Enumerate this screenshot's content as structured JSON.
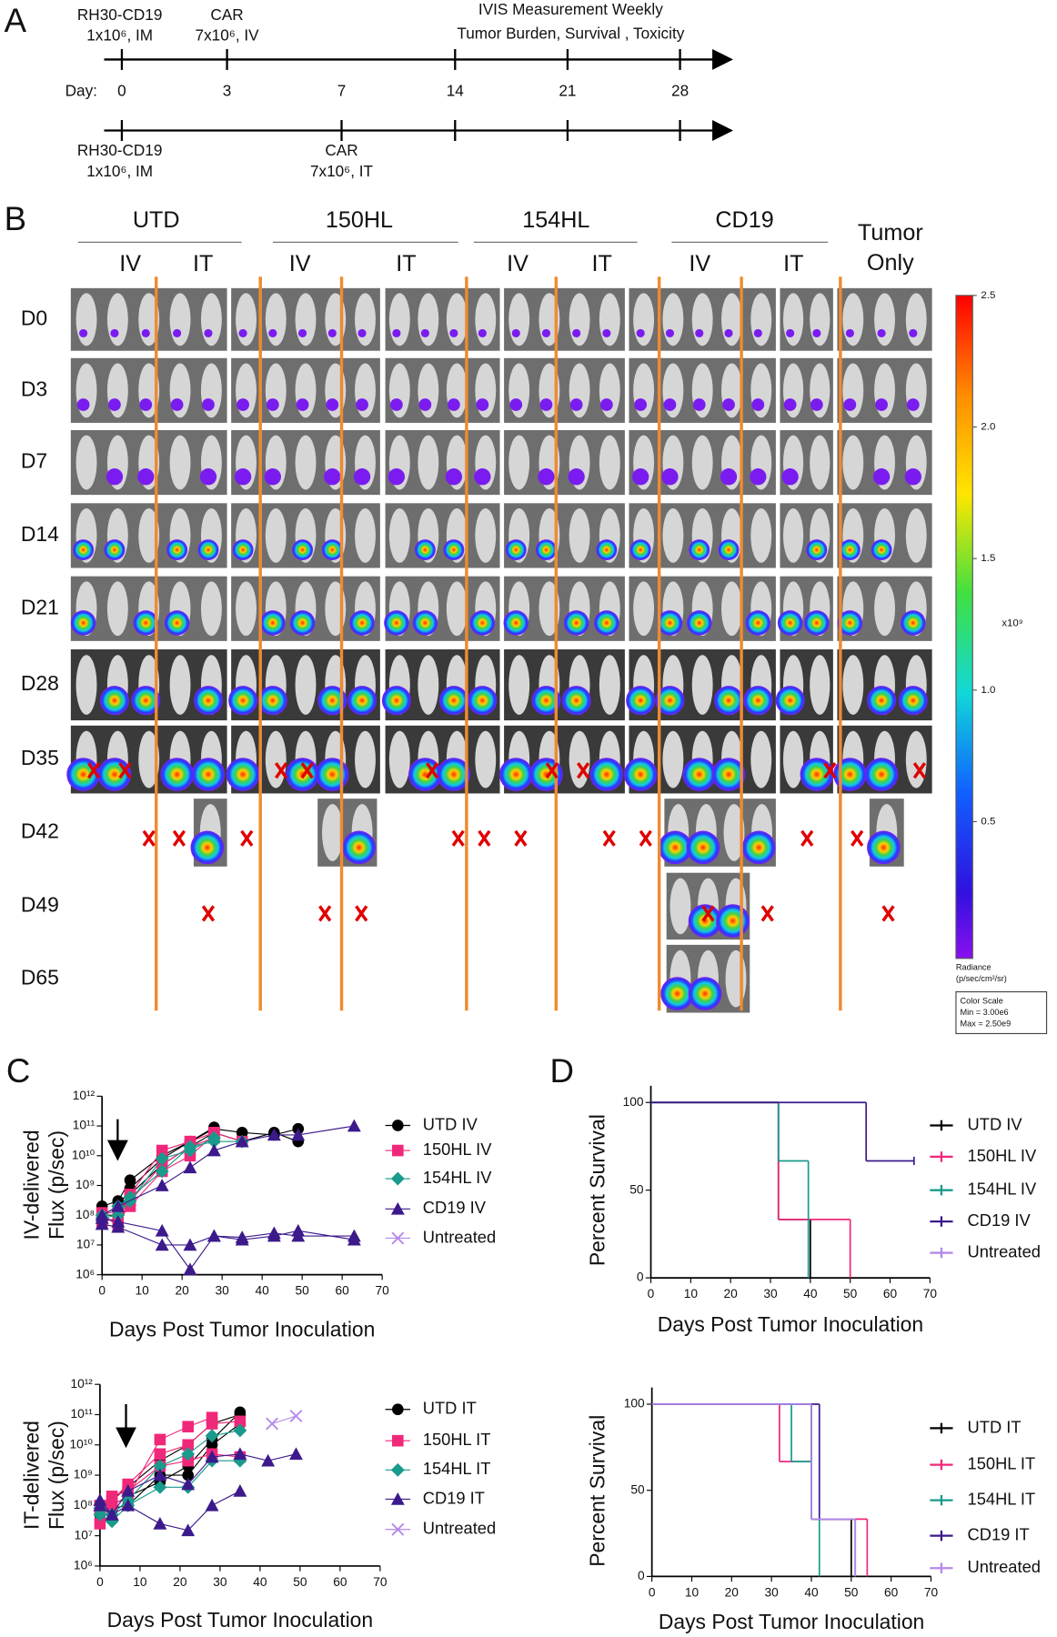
{
  "panel_labels": [
    "A",
    "B",
    "C",
    "D"
  ],
  "panel_a": {
    "top": [
      "RH30-CD19",
      "1x10⁶, IM",
      "CAR",
      "7x10⁶, IV",
      "IVIS Measurement Weekly",
      "Tumor  Burden, Survival , Toxicity"
    ],
    "day_label": "Day:",
    "days": [
      0,
      3,
      7,
      14,
      21,
      28
    ],
    "bottom": [
      "RH30-CD19",
      "1x10⁶, IM",
      "CAR",
      "7x10⁶, IT"
    ]
  },
  "panel_b": {
    "groups": [
      "UTD",
      "150HL",
      "154HL",
      "CD19"
    ],
    "tumor_only": [
      "Tumor",
      "Only"
    ],
    "routes": [
      "IV",
      "IT",
      "IV",
      "IT",
      "IV",
      "IT",
      "IV",
      "IT"
    ],
    "days": [
      "D0",
      "D3",
      "D7",
      "D14",
      "D21",
      "D28",
      "D35",
      "D42",
      "D49",
      "D65"
    ],
    "colorbar": {
      "lim": [
        0,
        2.5
      ],
      "ticks": [
        2.5,
        {
          "value": 2,
          "label": "2.0"
        },
        1.5,
        {
          "value": 1,
          "label": "1.0"
        },
        0.5
      ],
      "unit": "x10⁹",
      "title": [
        "Radiance",
        "(p/sec/cm²/sr)"
      ],
      "box": [
        "Color Scale",
        "Min = 3.00e6",
        "Max = 2.50e9"
      ]
    }
  },
  "chart_data": [
    {
      "type": "line",
      "log_y": true,
      "ylabel": [
        "IV-delivered",
        "Flux (p/sec)"
      ],
      "xlabel": "Days Post Tumor Inoculation",
      "xlim": [
        0,
        70
      ],
      "xticks": [
        0,
        10,
        20,
        30,
        40,
        50,
        60,
        70
      ],
      "ylim": [
        1000000.0,
        1000000000000.0
      ],
      "yticks": [
        {
          "value": 1000000.0,
          "label": "10⁶"
        },
        {
          "value": 10000000.0,
          "label": "10⁷"
        },
        {
          "value": 100000000.0,
          "label": "10⁸"
        },
        {
          "value": 1000000000.0,
          "label": "10⁹"
        },
        {
          "value": 10000000000.0,
          "label": "10¹⁰"
        },
        {
          "value": 100000000000.0,
          "label": "10¹¹"
        },
        {
          "value": 1000000000000.0,
          "label": "10¹²"
        }
      ],
      "series": [
        {
          "name": "UTD IV",
          "color": "#000000",
          "marker": "circle",
          "traces": [
            {
              "x": [
                0,
                4,
                7,
                15,
                22,
                28,
                35,
                43,
                49
              ],
              "values": [
                200000000.0,
                300000000.0,
                1500000000.0,
                10000000000.0,
                30000000000.0,
                80000000000.0,
                60000000000.0,
                50000000000.0,
                80000000000.0
              ]
            },
            {
              "x": [
                0,
                4,
                7,
                15,
                22,
                28,
                35,
                43,
                49
              ],
              "values": [
                100000000.0,
                100000000.0,
                500000000.0,
                5000000000.0,
                20000000000.0,
                60000000000.0,
                30000000000.0,
                60000000000.0,
                30000000000.0
              ]
            },
            {
              "x": [
                0,
                4,
                7,
                15,
                22,
                28
              ],
              "values": [
                100000000.0,
                200000000.0,
                800000000.0,
                8000000000.0,
                30000000000.0,
                90000000000.0
              ]
            }
          ]
        },
        {
          "name": "150HL IV",
          "color": "#f0287a",
          "marker": "square",
          "traces": [
            {
              "x": [
                0,
                4,
                7,
                15,
                22,
                28,
                35
              ],
              "values": [
                100000000.0,
                150000000.0,
                500000000.0,
                15000000000.0,
                30000000000.0,
                60000000000.0,
                30000000000.0
              ]
            },
            {
              "x": [
                0,
                4,
                7,
                15,
                22,
                28
              ],
              "values": [
                60000000.0,
                80000000.0,
                200000000.0,
                3000000000.0,
                10000000000.0,
                50000000000.0
              ]
            },
            {
              "x": [
                0,
                4,
                7,
                15,
                22,
                28
              ],
              "values": [
                120000000.0,
                40000000.0,
                300000000.0,
                5000000000.0,
                20000000000.0,
                40000000000.0
              ]
            }
          ]
        },
        {
          "name": "154HL IV",
          "color": "#1a9a8c",
          "marker": "diamond",
          "traces": [
            {
              "x": [
                0,
                4,
                7,
                15,
                22,
                28,
                35
              ],
              "values": [
                100000000.0,
                200000000.0,
                400000000.0,
                3000000000.0,
                20000000000.0,
                30000000000.0,
                30000000000.0
              ]
            },
            {
              "x": [
                0,
                4,
                7,
                15,
                22,
                28
              ],
              "values": [
                80000000.0,
                100000000.0,
                300000000.0,
                8000000000.0,
                15000000000.0,
                40000000000.0
              ]
            }
          ]
        },
        {
          "name": "CD19 IV",
          "color": "#3c1a8c",
          "marker": "triangle",
          "traces": [
            {
              "x": [
                0,
                4,
                15,
                22,
                28,
                35,
                43,
                49,
                63
              ],
              "values": [
                100000000.0,
                200000000.0,
                1000000000.0,
                4000000000.0,
                15000000000.0,
                30000000000.0,
                50000000000.0,
                50000000000.0,
                100000000000.0
              ]
            },
            {
              "x": [
                0,
                4,
                15,
                22,
                28,
                35,
                43,
                49,
                63
              ],
              "values": [
                80000000.0,
                60000000.0,
                30000000.0,
                1500000.0,
                20000000.0,
                15000000.0,
                20000000.0,
                30000000.0,
                15000000.0
              ]
            },
            {
              "x": [
                0,
                4,
                15,
                22,
                28,
                35,
                43,
                49,
                63
              ],
              "values": [
                50000000.0,
                40000000.0,
                10000000.0,
                10000000.0,
                20000000.0,
                18000000.0,
                25000000.0,
                20000000.0,
                20000000.0
              ]
            }
          ]
        },
        {
          "name": "Untreated",
          "color": "#b388eb",
          "marker": "x",
          "traces": []
        }
      ]
    },
    {
      "type": "line",
      "log_y": true,
      "ylabel": [
        "IT-delivered",
        "Flux (p/sec)"
      ],
      "xlabel": "Days Post Tumor Inoculation",
      "xlim": [
        0,
        70
      ],
      "xticks": [
        0,
        10,
        20,
        30,
        40,
        50,
        60,
        70
      ],
      "ylim": [
        1000000.0,
        1000000000000.0
      ],
      "yticks": [
        {
          "value": 1000000.0,
          "label": "10⁶"
        },
        {
          "value": 10000000.0,
          "label": "10⁷"
        },
        {
          "value": 100000000.0,
          "label": "10⁸"
        },
        {
          "value": 1000000000.0,
          "label": "10⁹"
        },
        {
          "value": 10000000000.0,
          "label": "10¹⁰"
        },
        {
          "value": 100000000000.0,
          "label": "10¹¹"
        },
        {
          "value": 1000000000000.0,
          "label": "10¹²"
        }
      ],
      "series": [
        {
          "name": "UTD IT",
          "color": "#000000",
          "marker": "circle",
          "traces": [
            {
              "x": [
                0,
                3,
                7,
                15,
                22,
                28,
                35
              ],
              "values": [
                100000000.0,
                150000000.0,
                400000000.0,
                3000000000.0,
                10000000000.0,
                50000000000.0,
                100000000000.0
              ]
            },
            {
              "x": [
                0,
                3,
                7,
                15,
                22,
                28,
                35
              ],
              "values": [
                50000000.0,
                80000000.0,
                100000000.0,
                1000000000.0,
                1000000000.0,
                10000000000.0,
                50000000000.0
              ]
            },
            {
              "x": [
                0,
                3,
                7,
                15,
                22,
                28,
                35
              ],
              "values": [
                70000000.0,
                100000000.0,
                200000000.0,
                600000000.0,
                2000000000.0,
                15000000000.0,
                120000000000.0
              ]
            }
          ]
        },
        {
          "name": "150HL IT",
          "color": "#f0287a",
          "marker": "square",
          "traces": [
            {
              "x": [
                0,
                3,
                7,
                15,
                22,
                28
              ],
              "values": [
                25000000.0,
                100000000.0,
                200000000.0,
                15000000000.0,
                40000000000.0,
                80000000000.0
              ]
            },
            {
              "x": [
                0,
                3,
                7,
                15,
                22,
                28,
                35
              ],
              "values": [
                70000000.0,
                150000000.0,
                500000000.0,
                5000000000.0,
                10000000000.0,
                50000000000.0,
                60000000000.0
              ]
            },
            {
              "x": [
                0,
                3,
                7,
                15,
                22,
                28,
                35
              ],
              "values": [
                100000000.0,
                200000000.0,
                300000000.0,
                2000000000.0,
                3000000000.0,
                5000000000.0,
                4000000000.0
              ]
            }
          ]
        },
        {
          "name": "154HL IT",
          "color": "#1a9a8c",
          "marker": "diamond",
          "traces": [
            {
              "x": [
                0,
                3,
                7,
                15,
                22,
                28,
                35
              ],
              "values": [
                50000000.0,
                30000000.0,
                100000000.0,
                400000000.0,
                400000000.0,
                3000000000.0,
                3000000000.0
              ]
            },
            {
              "x": [
                0,
                3,
                7,
                15,
                22,
                28,
                35
              ],
              "values": [
                80000000.0,
                50000000.0,
                150000000.0,
                2000000000.0,
                5000000000.0,
                20000000000.0,
                30000000000.0
              ]
            }
          ]
        },
        {
          "name": "CD19 IT",
          "color": "#3c1a8c",
          "marker": "triangle",
          "traces": [
            {
              "x": [
                0,
                3,
                7,
                15,
                22,
                28,
                35
              ],
              "values": [
                100000000.0,
                50000000.0,
                100000000.0,
                25000000.0,
                15000000.0,
                100000000.0,
                300000000.0
              ]
            },
            {
              "x": [
                0,
                3,
                7,
                15,
                22,
                28,
                35,
                42,
                49
              ],
              "values": [
                150000000.0,
                50000000.0,
                300000000.0,
                1000000000.0,
                500000000.0,
                4000000000.0,
                5000000000.0,
                3000000000.0,
                5000000000.0
              ]
            }
          ]
        },
        {
          "name": "Untreated",
          "color": "#b388eb",
          "marker": "x",
          "traces": [
            {
              "x": [
                43,
                49
              ],
              "values": [
                50000000000.0,
                90000000000.0
              ]
            }
          ]
        }
      ]
    },
    {
      "type": "step",
      "ylabel": "Percent Survival",
      "xlabel": "Days Post Tumor Inoculation",
      "xlim": [
        0,
        70
      ],
      "xticks": [
        0,
        10,
        20,
        30,
        40,
        50,
        60,
        70
      ],
      "ylim": [
        0,
        100
      ],
      "yticks": [
        0,
        50,
        100
      ],
      "series": [
        {
          "name": "UTD IV",
          "color": "#000000",
          "x": [
            0,
            32,
            40
          ],
          "values": [
            100,
            33.3,
            0
          ]
        },
        {
          "name": "150HL IV",
          "color": "#f0287a",
          "x": [
            0,
            32,
            50
          ],
          "values": [
            100,
            33.3,
            0
          ]
        },
        {
          "name": "154HL IV",
          "color": "#1a9a8c",
          "x": [
            0,
            32,
            39.5
          ],
          "values": [
            100,
            66.7,
            0
          ]
        },
        {
          "name": "CD19 IV",
          "color": "#3c1a8c",
          "x": [
            0,
            54,
            66
          ],
          "values": [
            100,
            66.7,
            66.7
          ]
        },
        {
          "name": "Untreated",
          "color": "#b388eb",
          "x": [],
          "values": []
        }
      ]
    },
    {
      "type": "step",
      "ylabel": "Percent Survival",
      "xlabel": "Days Post Tumor Inoculation",
      "xlim": [
        0,
        70
      ],
      "xticks": [
        0,
        10,
        20,
        30,
        40,
        50,
        60,
        70
      ],
      "ylim": [
        0,
        100
      ],
      "yticks": [
        0,
        50,
        100
      ],
      "series": [
        {
          "name": "UTD IT",
          "color": "#000000",
          "x": [
            0,
            40,
            50
          ],
          "values": [
            100,
            33.3,
            0
          ]
        },
        {
          "name": "150HL IT",
          "color": "#f0287a",
          "x": [
            0,
            32,
            40,
            54
          ],
          "values": [
            100,
            66.7,
            33.3,
            0
          ]
        },
        {
          "name": "154HL IT",
          "color": "#1a9a8c",
          "x": [
            0,
            35,
            40,
            42
          ],
          "values": [
            100,
            66.7,
            33.3,
            0
          ]
        },
        {
          "name": "CD19 IT",
          "color": "#3c1a8c",
          "x": [
            0,
            42,
            51
          ],
          "values": [
            100,
            33.3,
            0
          ]
        },
        {
          "name": "Untreated",
          "color": "#b388eb",
          "x": [
            0,
            40,
            51
          ],
          "values": [
            100,
            33.3,
            0
          ]
        }
      ]
    }
  ]
}
